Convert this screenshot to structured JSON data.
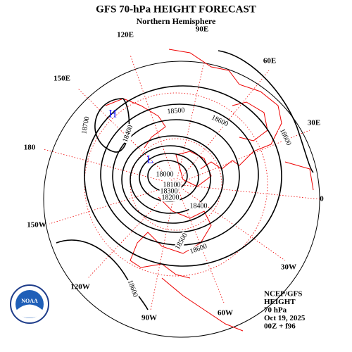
{
  "header": {
    "title": "GFS 70-hPa HEIGHT FORECAST",
    "subtitle": "Northern Hemisphere"
  },
  "longitude_labels": [
    "90E",
    "60E",
    "30E",
    "0",
    "30W",
    "60W",
    "90W",
    "120W",
    "150W",
    "180",
    "150E",
    "120E"
  ],
  "contour_labels": [
    18500,
    18600,
    18600,
    18700,
    18400,
    18000,
    18100,
    18300,
    18200,
    18400,
    18500,
    18600,
    18600
  ],
  "pressure_centers": [
    "H",
    "L"
  ],
  "logo": "NOAA",
  "info": [
    "NCEP/GFS",
    "HEIGHT",
    "70 hPa",
    "Oct 19, 2025",
    "00Z + f96"
  ]
}
